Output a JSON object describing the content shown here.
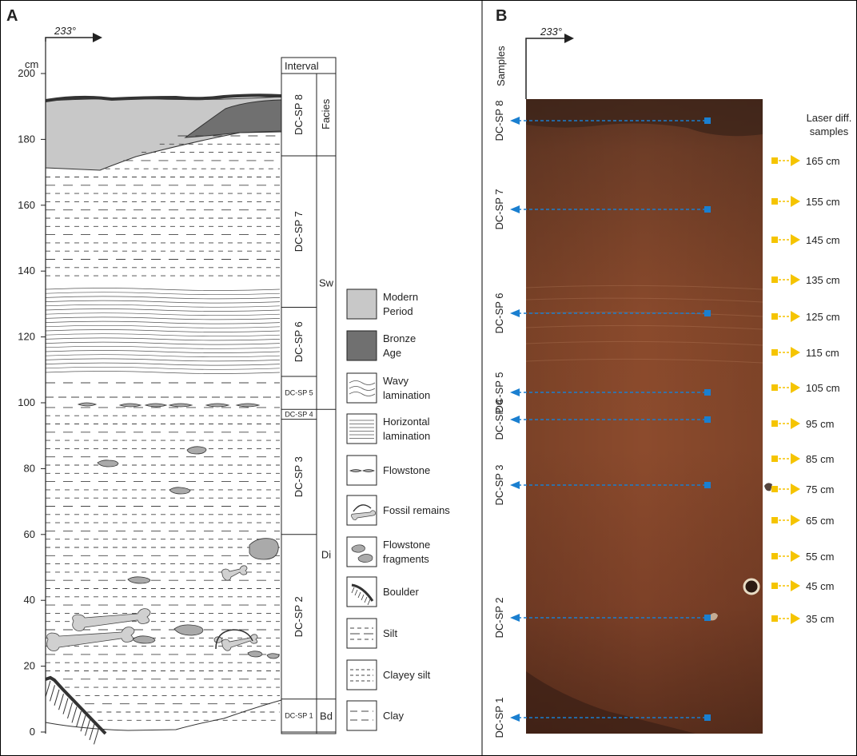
{
  "panel_a": {
    "label": "A",
    "azimuth": "233°",
    "y_unit": "cm",
    "y_ticks": [
      "0",
      "20",
      "40",
      "60",
      "80",
      "100",
      "120",
      "140",
      "160",
      "180",
      "200"
    ],
    "interval_header": "Interval",
    "facies_header": "Facies",
    "intervals": [
      {
        "name": "DC-SP 8",
        "from": 175,
        "to": 200
      },
      {
        "name": "DC-SP 7",
        "from": 129,
        "to": 175
      },
      {
        "name": "DC-SP 6",
        "from": 108,
        "to": 129
      },
      {
        "name": "DC-SP 5",
        "from": 98,
        "to": 108
      },
      {
        "name": "DC-SP 4",
        "from": 95,
        "to": 98
      },
      {
        "name": "DC-SP 3",
        "from": 60,
        "to": 95
      },
      {
        "name": "DC-SP 2",
        "from": 10,
        "to": 60
      },
      {
        "name": "DC-SP 1",
        "from": 0,
        "to": 10
      }
    ],
    "facies": [
      {
        "name": "",
        "from": 175,
        "to": 200
      },
      {
        "name": "Sw",
        "from": 98,
        "to": 175
      },
      {
        "name": "Di",
        "from": 10,
        "to": 98
      },
      {
        "name": "Bd",
        "from": 0,
        "to": 10
      }
    ]
  },
  "legend": [
    {
      "id": "modern",
      "lines": [
        "Modern",
        "Period"
      ],
      "color": "#c8c8c8"
    },
    {
      "id": "bronze",
      "lines": [
        "Bronze",
        "Age"
      ],
      "color": "#707070"
    },
    {
      "id": "wavy",
      "lines": [
        "Wavy",
        "lamination"
      ]
    },
    {
      "id": "horizontal",
      "lines": [
        "Horizontal",
        "lamination"
      ]
    },
    {
      "id": "flowstone",
      "lines": [
        "Flowstone"
      ]
    },
    {
      "id": "fossil",
      "lines": [
        "Fossil remains"
      ]
    },
    {
      "id": "fragments",
      "lines": [
        "Flowstone",
        "fragments"
      ]
    },
    {
      "id": "boulder",
      "lines": [
        "Boulder"
      ]
    },
    {
      "id": "silt",
      "lines": [
        "Silt"
      ]
    },
    {
      "id": "clayey",
      "lines": [
        "Clayey silt"
      ]
    },
    {
      "id": "clay",
      "lines": [
        "Clay"
      ]
    }
  ],
  "panel_b": {
    "label": "B",
    "azimuth": "233°",
    "samples_header": "Samples",
    "laser_header": [
      "Laser diff.",
      "samples"
    ],
    "samples": [
      {
        "name": "DC-SP 8",
        "depth": 178
      },
      {
        "name": "DC-SP 7",
        "depth": 152
      },
      {
        "name": "DC-SP 6",
        "depth": 122
      },
      {
        "name": "DC-SP 5",
        "depth": 99
      },
      {
        "name": "DC-SP 4",
        "depth": 91
      },
      {
        "name": "DC-SP 3",
        "depth": 72
      },
      {
        "name": "DC-SP 2",
        "depth": 33
      },
      {
        "name": "DC-SP 1",
        "depth": 4
      }
    ],
    "laser_samples": [
      {
        "label": "165 cm",
        "depth": 165
      },
      {
        "label": "155 cm",
        "depth": 155
      },
      {
        "label": "145 cm",
        "depth": 145
      },
      {
        "label": "135 cm",
        "depth": 135
      },
      {
        "label": "125 cm",
        "depth": 125
      },
      {
        "label": "115 cm",
        "depth": 115
      },
      {
        "label": "105 cm",
        "depth": 105
      },
      {
        "label": "95 cm",
        "depth": 95
      },
      {
        "label": "85 cm",
        "depth": 85
      },
      {
        "label": "75 cm",
        "depth": 75
      },
      {
        "label": "65 cm",
        "depth": 65
      },
      {
        "label": "55 cm",
        "depth": 55
      },
      {
        "label": "45 cm",
        "depth": 45
      },
      {
        "label": "35 cm",
        "depth": 35
      }
    ],
    "colors": {
      "sample_marker": "#1a7fd0",
      "laser_marker": "#f5c400"
    }
  }
}
